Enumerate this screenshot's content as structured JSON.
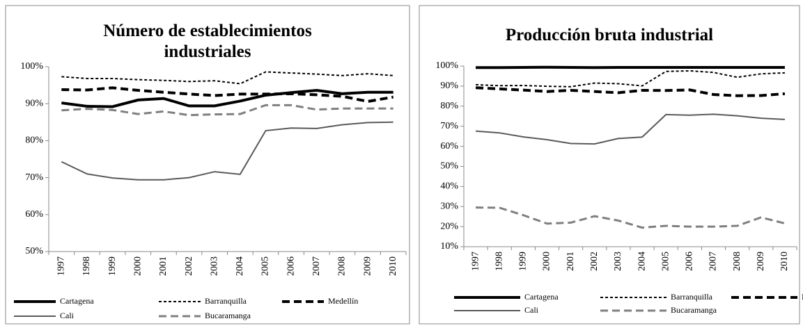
{
  "charts": [
    {
      "chart_data": {
        "type": "line",
        "title": "Número de establecimientos industriales",
        "categories": [
          "1997",
          "1998",
          "1999",
          "2000",
          "2001",
          "2002",
          "2003",
          "2004",
          "2005",
          "2006",
          "2007",
          "2008",
          "2009",
          "2010"
        ],
        "ylim": [
          50,
          100
        ],
        "yticks": [
          {
            "value": 50,
            "label": "50%"
          },
          {
            "value": 60,
            "label": "60%"
          },
          {
            "value": 70,
            "label": "70%"
          },
          {
            "value": 80,
            "label": "80%"
          },
          {
            "value": 90,
            "label": "90%"
          },
          {
            "value": 100,
            "label": "100%"
          }
        ],
        "series": [
          {
            "name": "Cartagena",
            "color": "#000000",
            "line_style": "solid",
            "line_width": "thick",
            "values": [
              90.2,
              89.3,
              89.2,
              91.0,
              91.4,
              89.4,
              89.4,
              90.7,
              92.3,
              93.0,
              93.6,
              92.7,
              93.1,
              93.1
            ]
          },
          {
            "name": "Barranquilla",
            "color": "#000000",
            "line_style": "dotted",
            "line_width": "thin",
            "values": [
              97.3,
              96.8,
              96.8,
              96.5,
              96.3,
              96.0,
              96.2,
              95.4,
              98.6,
              98.3,
              98.0,
              97.6,
              98.1,
              97.6
            ]
          },
          {
            "name": "Medellín",
            "color": "#000000",
            "line_style": "dashed",
            "line_width": "thick",
            "values": [
              93.8,
              93.7,
              94.3,
              93.6,
              93.1,
              92.6,
              92.2,
              92.6,
              92.6,
              92.7,
              92.4,
              92.0,
              90.6,
              91.8
            ]
          },
          {
            "name": "Cali",
            "color": "#595959",
            "line_style": "solid",
            "line_width": "thin",
            "values": [
              74.3,
              71.0,
              69.9,
              69.4,
              69.4,
              70.0,
              71.6,
              70.9,
              82.7,
              83.4,
              83.3,
              84.3,
              84.9,
              85.0
            ]
          },
          {
            "name": "Bucaramanga",
            "color": "#7f7f7f",
            "line_style": "dashed",
            "line_width": "medium",
            "values": [
              88.2,
              88.6,
              88.3,
              87.2,
              87.9,
              86.9,
              87.1,
              87.2,
              89.6,
              89.6,
              88.4,
              88.7,
              88.7,
              88.7
            ]
          }
        ]
      }
    },
    {
      "chart_data": {
        "type": "line",
        "title": "Producción bruta industrial",
        "categories": [
          "1997",
          "1998",
          "1999",
          "2000",
          "2001",
          "2002",
          "2003",
          "2004",
          "2005",
          "2006",
          "2007",
          "2008",
          "2009",
          "2010"
        ],
        "ylim": [
          10,
          100
        ],
        "yticks": [
          {
            "value": 10,
            "label": "10%"
          },
          {
            "value": 20,
            "label": "20%"
          },
          {
            "value": 30,
            "label": "30%"
          },
          {
            "value": 40,
            "label": "40%"
          },
          {
            "value": 50,
            "label": "50%"
          },
          {
            "value": 60,
            "label": "60%"
          },
          {
            "value": 70,
            "label": "70%"
          },
          {
            "value": 80,
            "label": "80%"
          },
          {
            "value": 90,
            "label": "90%"
          },
          {
            "value": 100,
            "label": "100%"
          }
        ],
        "series": [
          {
            "name": "Cartagena",
            "color": "#000000",
            "line_style": "solid",
            "line_width": "thick",
            "values": [
              99.2,
              99.2,
              99.3,
              99.4,
              99.3,
              99.2,
              99.3,
              99.3,
              99.3,
              99.3,
              99.3,
              99.3,
              99.3,
              99.3
            ]
          },
          {
            "name": "Barranquilla",
            "color": "#000000",
            "line_style": "dotted",
            "line_width": "thin",
            "values": [
              90.7,
              90.2,
              90.3,
              89.9,
              89.7,
              91.5,
              91.2,
              90.1,
              97.3,
              97.6,
              96.8,
              94.4,
              96.1,
              96.6
            ]
          },
          {
            "name": "Medellín",
            "color": "#000000",
            "line_style": "dashed",
            "line_width": "thick",
            "values": [
              89.2,
              88.6,
              88.0,
              87.3,
              87.9,
              87.3,
              86.7,
              87.9,
              87.8,
              88.1,
              85.8,
              85.2,
              85.3,
              86.2
            ]
          },
          {
            "name": "Cali",
            "color": "#595959",
            "line_style": "solid",
            "line_width": "thin",
            "values": [
              67.6,
              66.7,
              64.7,
              63.3,
              61.4,
              61.2,
              63.9,
              64.6,
              75.8,
              75.5,
              76.0,
              75.2,
              74.0,
              73.4
            ]
          },
          {
            "name": "Bucaramanga",
            "color": "#7f7f7f",
            "line_style": "dashed",
            "line_width": "medium",
            "values": [
              29.5,
              29.4,
              25.7,
              21.5,
              22.0,
              25.2,
              23.0,
              19.5,
              20.4,
              20.0,
              20.0,
              20.4,
              24.6,
              21.6
            ]
          }
        ]
      }
    }
  ]
}
